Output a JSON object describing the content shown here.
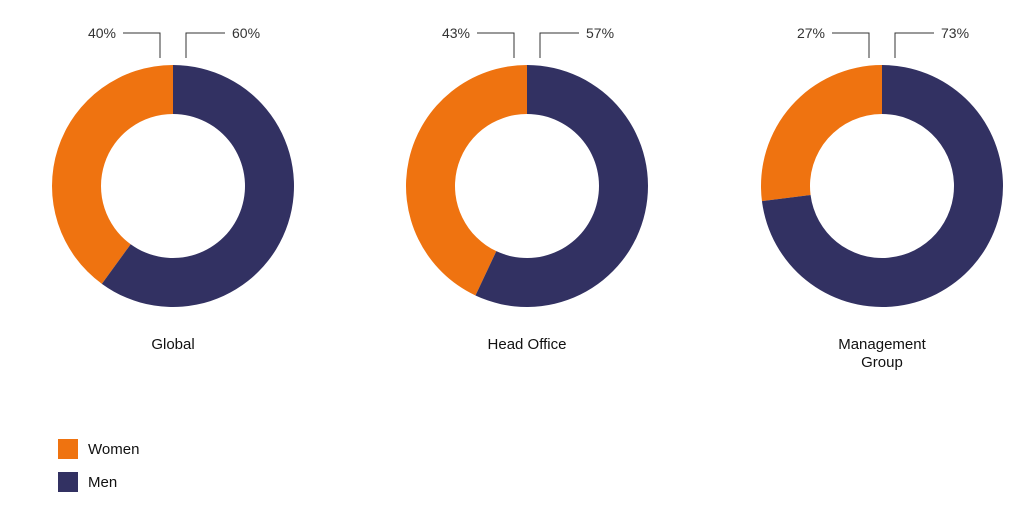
{
  "chart_data": [
    {
      "type": "pie",
      "title": "Global",
      "categories": [
        "Women",
        "Men"
      ],
      "values": [
        40,
        60
      ],
      "labels": [
        "40%",
        "60%"
      ]
    },
    {
      "type": "pie",
      "title": "Head Office",
      "categories": [
        "Women",
        "Men"
      ],
      "values": [
        43,
        57
      ],
      "labels": [
        "43%",
        "57%"
      ]
    },
    {
      "type": "pie",
      "title": "Management Group",
      "title_lines": [
        "Management",
        "Group"
      ],
      "categories": [
        "Women",
        "Men"
      ],
      "values": [
        27,
        73
      ],
      "labels": [
        "27%",
        "73%"
      ]
    }
  ],
  "legend": [
    {
      "label": "Women",
      "color": "#ef7310"
    },
    {
      "label": "Men",
      "color": "#323162"
    }
  ],
  "colors": {
    "women": "#ef7310",
    "men": "#323162",
    "leader": "#333333"
  }
}
